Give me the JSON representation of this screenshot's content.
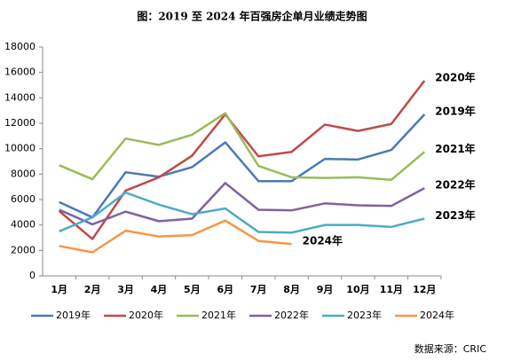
{
  "chart_data": {
    "type": "line",
    "title": "图：2019 至 2024 年百强房企单月业绩走势图",
    "categories": [
      "1月",
      "2月",
      "3月",
      "4月",
      "5月",
      "6月",
      "7月",
      "8月",
      "9月",
      "10月",
      "11月",
      "12月"
    ],
    "series": [
      {
        "name": "2019年",
        "color": "#4a7ab5",
        "values": [
          5800,
          4600,
          8150,
          7800,
          8550,
          10500,
          7450,
          7450,
          9200,
          9150,
          9900,
          12700
        ]
      },
      {
        "name": "2020年",
        "color": "#be4b48",
        "values": [
          5100,
          2900,
          6700,
          7750,
          9450,
          12700,
          9400,
          9750,
          11900,
          11400,
          11950,
          15350
        ]
      },
      {
        "name": "2021年",
        "color": "#9bbb59",
        "values": [
          8700,
          7600,
          10800,
          10300,
          11100,
          12800,
          8650,
          7750,
          7700,
          7750,
          7550,
          9750
        ]
      },
      {
        "name": "2022年",
        "color": "#7f62a0",
        "values": [
          5200,
          4050,
          5050,
          4300,
          4500,
          7300,
          5200,
          5150,
          5700,
          5550,
          5500,
          6900
        ]
      },
      {
        "name": "2023年",
        "color": "#4bacc6",
        "values": [
          3500,
          4600,
          6550,
          5600,
          4850,
          5300,
          3450,
          3400,
          4000,
          4000,
          3850,
          4500
        ]
      },
      {
        "name": "2024年",
        "color": "#f79646",
        "values": [
          2350,
          1850,
          3550,
          3100,
          3200,
          4350,
          2750,
          2500,
          null,
          null,
          null,
          null
        ]
      }
    ],
    "ylim": [
      0,
      18000
    ],
    "yticks": [
      0,
      2000,
      4000,
      6000,
      8000,
      10000,
      12000,
      14000,
      16000,
      18000
    ],
    "grid": false,
    "source": "数据来源：CRIC"
  }
}
